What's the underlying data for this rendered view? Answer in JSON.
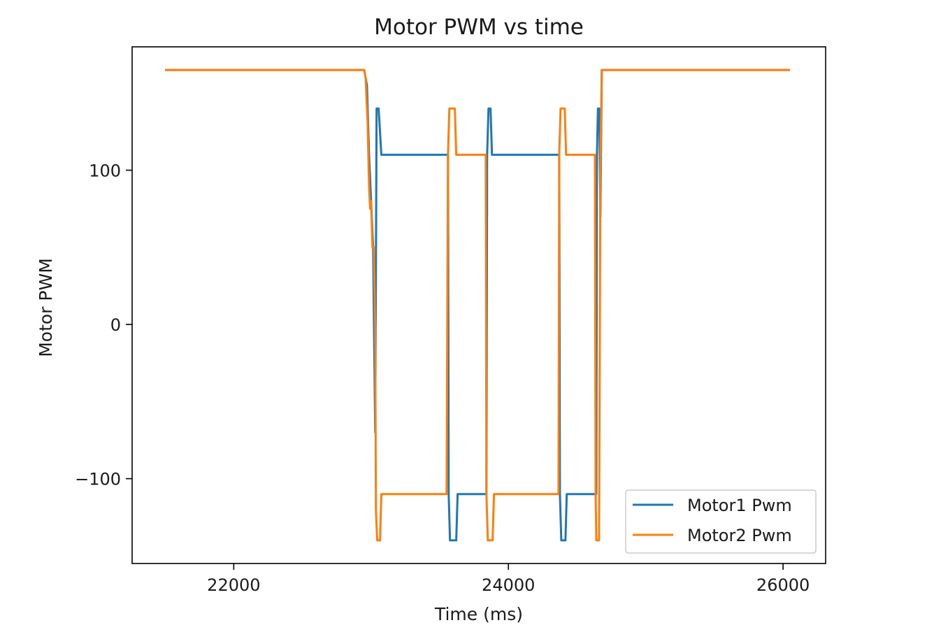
{
  "chart_data": {
    "type": "line",
    "title": "Motor PWM vs time",
    "xlabel": "Time (ms)",
    "ylabel": "Motor PWM",
    "xlim": [
      21260,
      26310
    ],
    "ylim": [
      -155,
      180
    ],
    "xticks": [
      22000,
      24000,
      26000
    ],
    "xtick_labels": [
      "22000",
      "24000",
      "26000"
    ],
    "yticks": [
      -100,
      0,
      100
    ],
    "ytick_labels": [
      "−100",
      "0",
      "100"
    ],
    "grid": false,
    "legend_position": "lower-right",
    "series": [
      {
        "name": "Motor1 Pwm",
        "color": "#1f77b4",
        "x": [
          21500,
          22950,
          22970,
          22985,
          23000,
          23015,
          23030,
          23040,
          23055,
          23075,
          23560,
          23565,
          23575,
          23590,
          23620,
          23630,
          23645,
          23840,
          23845,
          23855,
          23870,
          23880,
          23895,
          24370,
          24375,
          24385,
          24400,
          24415,
          24425,
          24440,
          24640,
          24645,
          24652,
          24662,
          24670,
          24680,
          24690,
          26050
        ],
        "values": [
          165,
          165,
          155,
          110,
          80,
          50,
          -70,
          140,
          140,
          110,
          110,
          -110,
          -140,
          -140,
          -140,
          -110,
          -110,
          -110,
          110,
          140,
          140,
          110,
          110,
          110,
          -110,
          -140,
          -140,
          -140,
          -110,
          -110,
          -110,
          110,
          140,
          140,
          70,
          165,
          165,
          165
        ]
      },
      {
        "name": "Motor2 Pwm",
        "color": "#ff7f0e",
        "x": [
          21500,
          22950,
          22960,
          22975,
          22985,
          22993,
          23000,
          23010,
          23020,
          23030,
          23035,
          23045,
          23060,
          23065,
          23075,
          23550,
          23560,
          23570,
          23590,
          23610,
          23620,
          23630,
          23835,
          23840,
          23850,
          23870,
          23885,
          23895,
          24365,
          24370,
          24380,
          24390,
          24410,
          24420,
          24430,
          24630,
          24635,
          24640,
          24650,
          24660,
          24670,
          24680,
          26050
        ],
        "values": [
          165,
          165,
          160,
          130,
          90,
          75,
          80,
          50,
          50,
          0,
          -120,
          -140,
          -140,
          -140,
          -110,
          -110,
          110,
          140,
          140,
          140,
          110,
          110,
          110,
          -110,
          -140,
          -140,
          -140,
          -110,
          -110,
          110,
          140,
          140,
          140,
          110,
          110,
          110,
          -110,
          -140,
          -140,
          -140,
          100,
          165,
          165
        ]
      }
    ]
  }
}
